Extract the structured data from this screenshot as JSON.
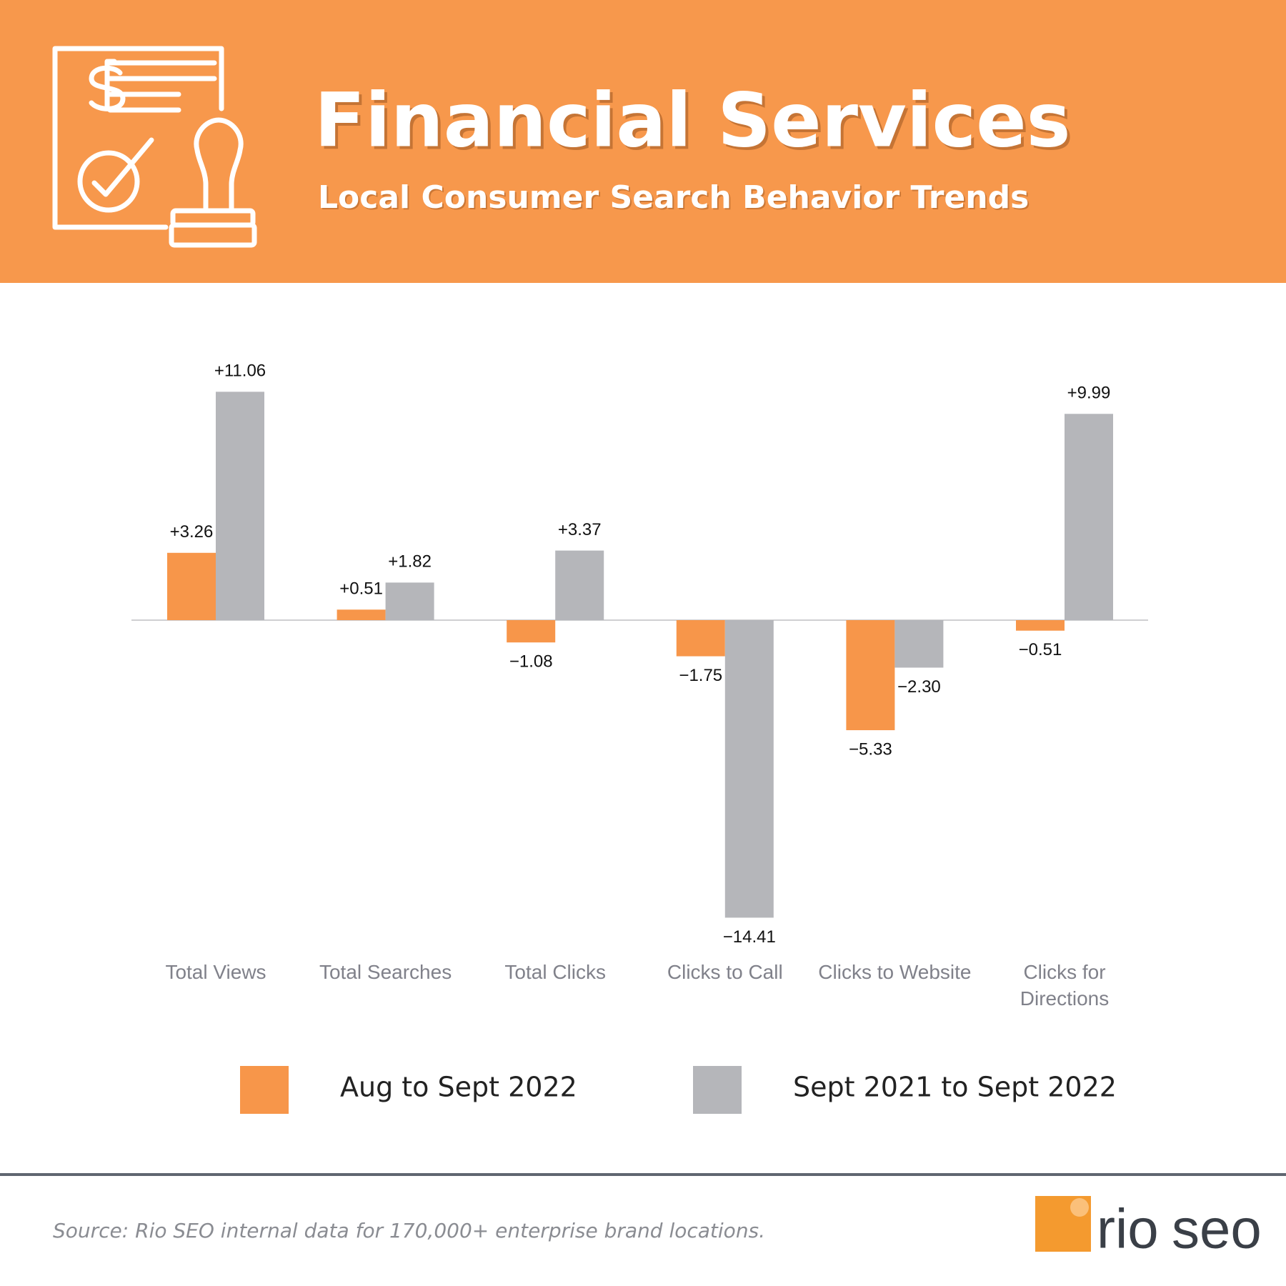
{
  "header": {
    "title": "Financial Services",
    "subtitle": "Local Consumer Search Behavior Trends"
  },
  "chart_data": {
    "type": "bar",
    "categories": [
      "Total Views",
      "Total Searches",
      "Total Clicks",
      "Clicks to Call",
      "Clicks to Website",
      "Clicks for Directions"
    ],
    "series": [
      {
        "name": "Aug to Sept 2022",
        "color": "#f7964a",
        "values": [
          3.26,
          0.51,
          -1.08,
          -1.75,
          -5.33,
          -0.51
        ],
        "value_labels": [
          "+3.26",
          "+0.51",
          "−1.08",
          "−1.75",
          "−5.33",
          "−0.51"
        ]
      },
      {
        "name": "Sept 2021 to Sept 2022",
        "color": "#b5b6ba",
        "values": [
          11.06,
          1.82,
          3.37,
          -14.41,
          -2.3,
          9.99
        ],
        "value_labels": [
          "+11.06",
          "+1.82",
          "+3.37",
          "−14.41",
          "−2.30",
          "+9.99"
        ]
      }
    ]
  },
  "footer": {
    "source": "Source: Rio SEO internal data for 170,000+ enterprise brand locations.",
    "logo": [
      "rio",
      "seo"
    ]
  }
}
